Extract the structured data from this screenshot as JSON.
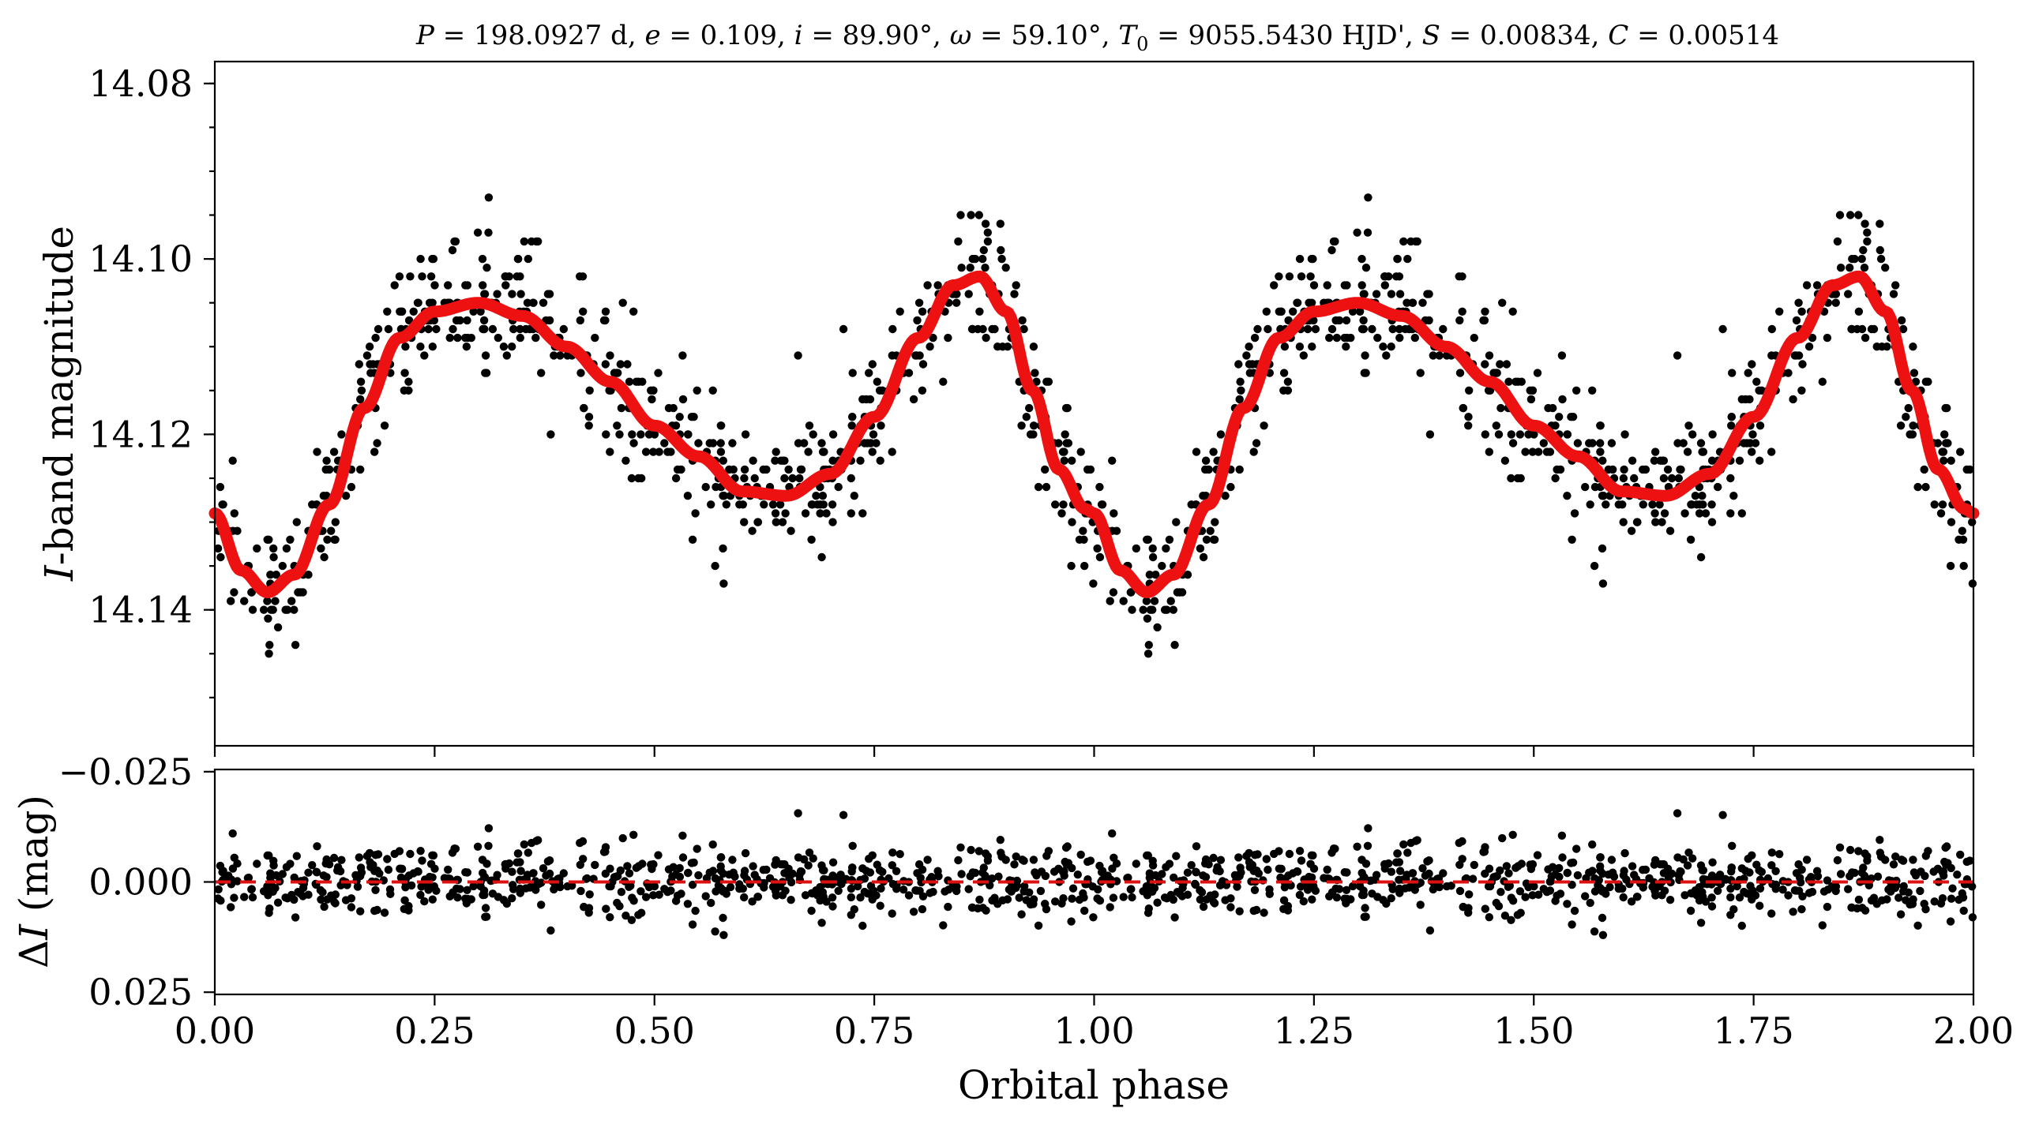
{
  "title": {
    "P_sym": "P",
    "P_val": " = 198.0927 d, ",
    "e_sym": "e",
    "e_val": " = 0.109, ",
    "i_sym": "i",
    "i_val": " = 89.90°, ",
    "w_sym": "ω",
    "w_val": " = 59.10°, ",
    "T_sym": "T",
    "T_sub": "0",
    "T_val": " = 9055.5430 HJD', ",
    "S_sym": "S",
    "S_val": " = 0.00834, ",
    "C_sym": "C",
    "C_val": " = 0.00514"
  },
  "chart_data": [
    {
      "type": "scatter",
      "panel": "top",
      "ylabel_symbol": "I",
      "ylabel_text": "-band magnitude",
      "xlim": [
        0.0,
        2.0
      ],
      "ylim": [
        14.1555,
        14.0775
      ],
      "y_inverted": true,
      "yticks": [
        14.08,
        14.1,
        14.12,
        14.14
      ],
      "ytick_labels": [
        "14.08",
        "14.10",
        "14.12",
        "14.14"
      ],
      "xticks": [
        0.0,
        0.25,
        0.5,
        0.75,
        1.0,
        1.25,
        1.5,
        1.75,
        2.0
      ],
      "series": [
        {
          "kind": "points",
          "color": "#000000",
          "description_points_per_phase": "~700 points repeated over two phase cycles, scatter ~0.004 mag about the model"
        },
        {
          "kind": "line",
          "color": "#ee1111",
          "model": {
            "phase": [
              0.0,
              0.03,
              0.06,
              0.09,
              0.13,
              0.17,
              0.21,
              0.25,
              0.3,
              0.35,
              0.4,
              0.45,
              0.5,
              0.55,
              0.6,
              0.65,
              0.7,
              0.75,
              0.8,
              0.84,
              0.87,
              0.9,
              0.93,
              0.96,
              0.99,
              1.0
            ],
            "mag": [
              14.129,
              14.1355,
              14.138,
              14.136,
              14.128,
              14.117,
              14.109,
              14.106,
              14.105,
              14.1065,
              14.11,
              14.114,
              14.119,
              14.1225,
              14.1265,
              14.127,
              14.1245,
              14.118,
              14.109,
              14.103,
              14.102,
              14.106,
              14.115,
              14.124,
              14.1285,
              14.129
            ]
          }
        }
      ]
    },
    {
      "type": "scatter",
      "panel": "bottom",
      "ylabel_prefix": "Δ",
      "ylabel_symbol": "I",
      "ylabel_text": " (mag)",
      "xlabel": "Orbital phase",
      "xlim": [
        0.0,
        2.0
      ],
      "ylim": [
        0.0255,
        -0.0255
      ],
      "y_inverted": true,
      "yticks": [
        -0.025,
        0.0,
        0.025
      ],
      "ytick_labels": [
        "−0.025",
        "0.000",
        "0.025"
      ],
      "xticks": [
        0.0,
        0.25,
        0.5,
        0.75,
        1.0,
        1.25,
        1.5,
        1.75,
        2.0
      ],
      "xtick_labels": [
        "0.00",
        "0.25",
        "0.50",
        "0.75",
        "1.00",
        "1.25",
        "1.50",
        "1.75",
        "2.00"
      ],
      "series": [
        {
          "kind": "points",
          "color": "#000000",
          "residual_sigma": 0.004
        },
        {
          "kind": "dashed-line",
          "color": "#dd1111",
          "y": 0.0
        }
      ]
    }
  ]
}
